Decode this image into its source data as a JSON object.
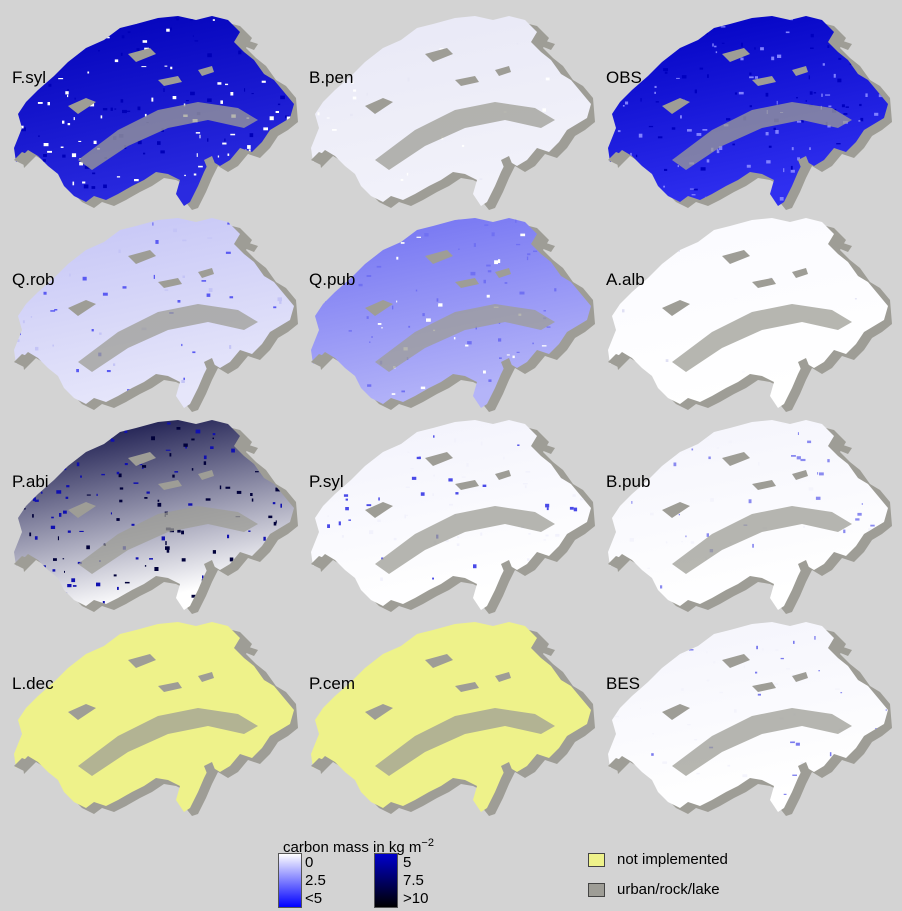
{
  "panels": [
    {
      "label": "F.syl",
      "fill": "#2a2ae0",
      "fill2": "#0000b8",
      "speckle": "#ffffff",
      "density": 0.85
    },
    {
      "label": "B.pen",
      "fill": "#f2f2fa",
      "fill2": "#e8e8f6",
      "speckle": "#ffffff",
      "density": 0.1
    },
    {
      "label": "OBS",
      "fill": "#2f2ff0",
      "fill2": "#0000c0",
      "speckle": "#8080ff",
      "density": 0.8
    },
    {
      "label": "Q.rob",
      "fill": "#e6e6fa",
      "fill2": "#c4c4f6",
      "speckle": "#5a5af2",
      "density": 0.3
    },
    {
      "label": "Q.pub",
      "fill": "#b4b4f8",
      "fill2": "#7070f2",
      "speckle": "#ffffff",
      "density": 0.45
    },
    {
      "label": "A.alb",
      "fill": "#ffffff",
      "fill2": "#fafaff",
      "speckle": "#e0e0f4",
      "density": 0.05
    },
    {
      "label": "P.abi",
      "fill": "#ffffff",
      "fill2": "#00003a",
      "speckle": "#1010b0",
      "density": 0.7
    },
    {
      "label": "P.syl",
      "fill": "#ffffff",
      "fill2": "#f2f2fc",
      "speckle": "#4a4ae8",
      "density": 0.35
    },
    {
      "label": "B.pub",
      "fill": "#ffffff",
      "fill2": "#f4f4fc",
      "speckle": "#8a8af0",
      "density": 0.3
    },
    {
      "label": "L.dec",
      "fill": "#eef28a",
      "fill2": "#eef28a",
      "speckle": "#eef28a",
      "density": 0
    },
    {
      "label": "P.cem",
      "fill": "#eef28a",
      "fill2": "#eef28a",
      "speckle": "#eef28a",
      "density": 0
    },
    {
      "label": "BES",
      "fill": "#ffffff",
      "fill2": "#f4f4fc",
      "speckle": "#7a7aee",
      "density": 0.3
    }
  ],
  "legend": {
    "title": "carbon mass in kg m",
    "title_exp": "−2",
    "low_ticks": [
      "0",
      "2.5",
      "<5"
    ],
    "high_ticks": [
      "5",
      "7.5",
      ">10"
    ],
    "not_implemented": "not implemented",
    "urban": "urban/rock/lake"
  },
  "colors": {
    "background": "#d3d3d3",
    "urban_rock_lake": "#9e9d96",
    "not_implemented": "#eef28a",
    "carbon_low": "#0000ff",
    "carbon_high": "#000000"
  }
}
